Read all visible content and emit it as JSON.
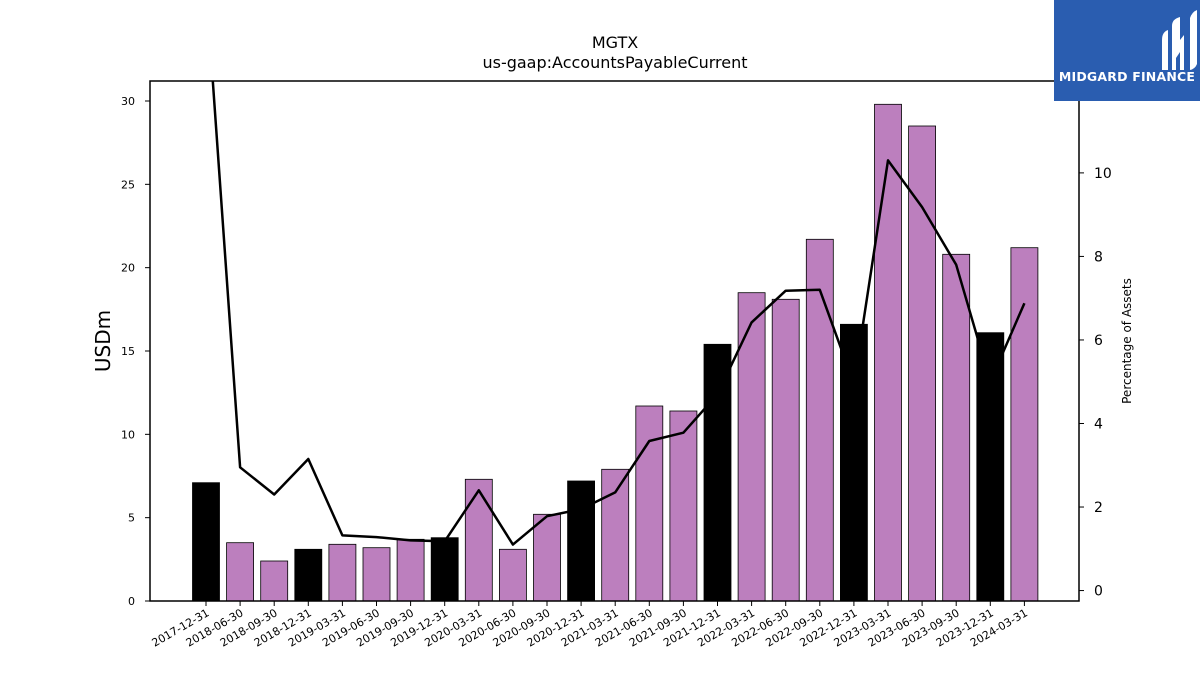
{
  "chart_data": {
    "type": "bar",
    "title": "MGTX",
    "subtitle": "us-gaap:AccountsPayableCurrent",
    "ylabel": "USDm",
    "y2label": "Percentage of Assets",
    "ylim": [
      0,
      31.2
    ],
    "y2lim": [
      -0.25,
      12.2
    ],
    "yticks": [
      0,
      5,
      10,
      15,
      20,
      25,
      30
    ],
    "y2ticks": [
      0,
      2,
      4,
      6,
      8,
      10
    ],
    "categories": [
      "2017-12-31",
      "2018-06-30",
      "2018-09-30",
      "2018-12-31",
      "2019-03-31",
      "2019-06-30",
      "2019-09-30",
      "2019-12-31",
      "2020-03-31",
      "2020-06-30",
      "2020-09-30",
      "2020-12-31",
      "2021-03-31",
      "2021-06-30",
      "2021-09-30",
      "2021-12-31",
      "2022-03-31",
      "2022-06-30",
      "2022-09-30",
      "2022-12-31",
      "2023-03-31",
      "2023-06-30",
      "2023-09-30",
      "2023-12-31",
      "2024-03-31"
    ],
    "series": [
      {
        "type": "bar",
        "values": [
          7.1,
          3.5,
          2.4,
          3.1,
          3.4,
          3.2,
          3.7,
          3.8,
          7.3,
          3.1,
          5.2,
          7.2,
          7.9,
          11.7,
          11.4,
          15.4,
          18.5,
          18.1,
          21.7,
          16.6,
          29.8,
          28.5,
          20.8,
          16.1,
          21.2
        ]
      },
      {
        "type": "line",
        "axis": "right",
        "values": [
          14.5,
          2.95,
          2.3,
          3.15,
          1.32,
          1.28,
          1.2,
          1.18,
          2.4,
          1.1,
          1.78,
          1.95,
          2.35,
          3.58,
          3.78,
          4.7,
          6.42,
          7.18,
          7.2,
          4.95,
          10.3,
          9.18,
          7.8,
          5.0,
          6.88
        ]
      }
    ],
    "colors": {
      "annual_bar": "#000000",
      "quarter_bar": "#bc7fbe",
      "line": "#000000"
    }
  },
  "logo": {
    "text": "MIDGARD FINANCE"
  }
}
